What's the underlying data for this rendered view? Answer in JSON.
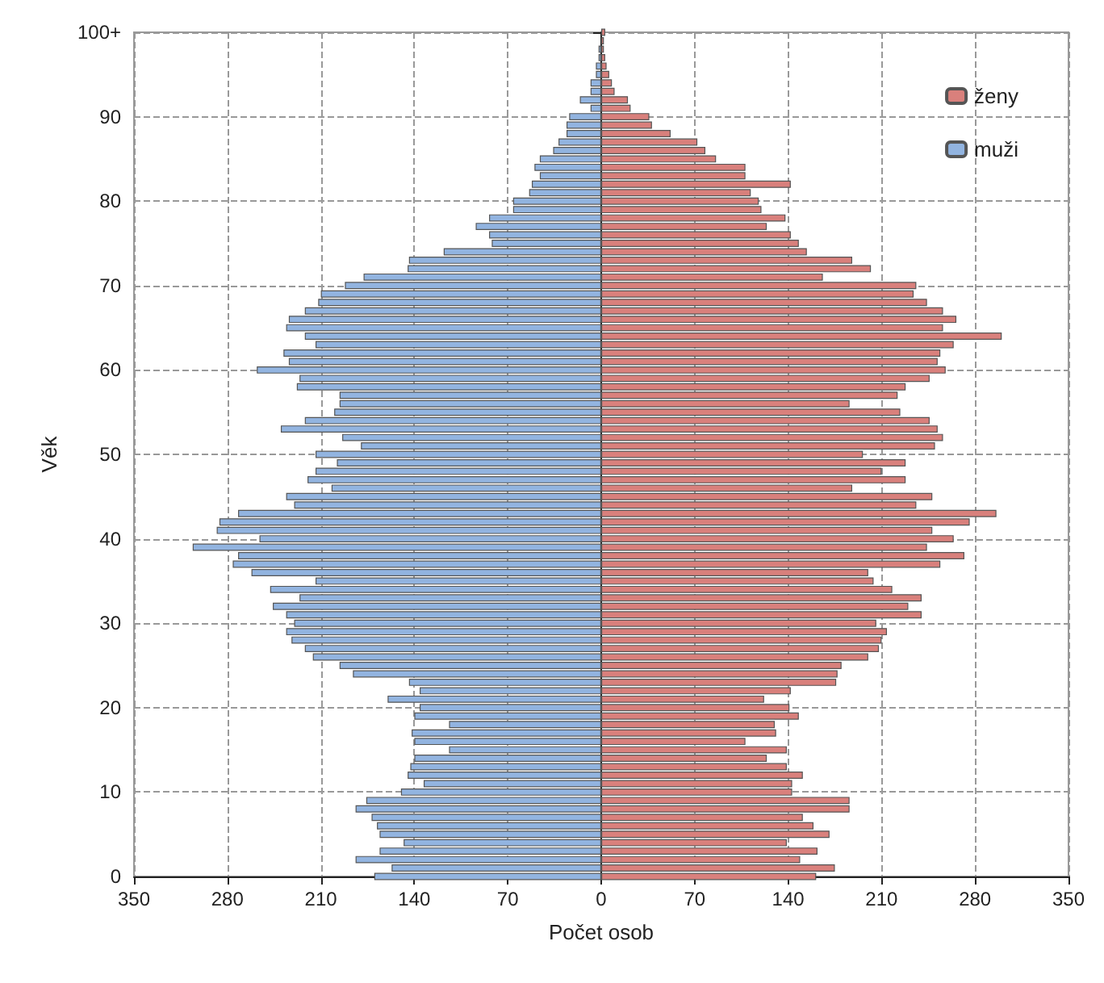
{
  "chart_data": {
    "type": "bar",
    "orientation": "horizontal",
    "stacked": true,
    "xlabel": "Počet osob",
    "ylabel": "Věk",
    "categories": [
      "100+",
      null,
      null,
      null,
      null,
      null,
      null,
      null,
      null,
      null,
      "90",
      null,
      null,
      null,
      null,
      null,
      null,
      null,
      null,
      null,
      "80",
      null,
      null,
      null,
      null,
      null,
      null,
      null,
      null,
      null,
      "70",
      null,
      null,
      null,
      null,
      null,
      null,
      null,
      null,
      null,
      "60",
      null,
      null,
      null,
      null,
      null,
      null,
      null,
      null,
      null,
      "50",
      null,
      null,
      null,
      null,
      null,
      null,
      null,
      null,
      null,
      "40",
      null,
      null,
      null,
      null,
      null,
      null,
      null,
      null,
      null,
      "30",
      null,
      null,
      null,
      null,
      null,
      null,
      null,
      null,
      null,
      "20",
      null,
      null,
      null,
      null,
      null,
      null,
      null,
      null,
      null,
      "10",
      null,
      null,
      null,
      null,
      null,
      null,
      null,
      null,
      null,
      "0"
    ],
    "series": [
      {
        "name": "ženy",
        "color": "#d9807c",
        "values": [
          3,
          2,
          2,
          3,
          4,
          6,
          8,
          10,
          20,
          22,
          36,
          38,
          52,
          72,
          78,
          86,
          108,
          108,
          142,
          112,
          118,
          120,
          138,
          124,
          142,
          148,
          154,
          188,
          202,
          166,
          236,
          234,
          244,
          256,
          266,
          256,
          300,
          264,
          254,
          252,
          258,
          246,
          228,
          222,
          186,
          224,
          246,
          252,
          256,
          250,
          196,
          228,
          210,
          228,
          188,
          248,
          236,
          296,
          276,
          248,
          264,
          244,
          272,
          254,
          200,
          204,
          218,
          240,
          230,
          240,
          206,
          214,
          210,
          208,
          200,
          180,
          177,
          176,
          142,
          122,
          141,
          148,
          130,
          131,
          108,
          139,
          124,
          139,
          151,
          143,
          143,
          186,
          186,
          151,
          159,
          171,
          139,
          162,
          149,
          175,
          161
        ]
      },
      {
        "name": "muži",
        "color": "#92b4e0",
        "values": [
          null,
          null,
          -2,
          -2,
          -4,
          -4,
          -8,
          -8,
          -16,
          -8,
          -24,
          -26,
          -26,
          -32,
          -36,
          -46,
          -50,
          -46,
          -52,
          -54,
          -66,
          -66,
          -84,
          -94,
          -84,
          -82,
          -118,
          -144,
          -145,
          -178,
          -192,
          -210,
          -212,
          -222,
          -234,
          -236,
          -222,
          -214,
          -238,
          -234,
          -258,
          -226,
          -228,
          -196,
          -196,
          -200,
          -222,
          -240,
          -194,
          -180,
          -214,
          -198,
          -214,
          -220,
          -202,
          -236,
          -230,
          -272,
          -286,
          -288,
          -256,
          -306,
          -272,
          -276,
          -262,
          -214,
          -248,
          -226,
          -246,
          -236,
          -230,
          -236,
          -232,
          -222,
          -216,
          -196,
          -186,
          -144,
          -136,
          -160,
          -136,
          -140,
          -114,
          -142,
          -140,
          -114,
          -140,
          -143,
          -145,
          -133,
          -150,
          -176,
          -184,
          -172,
          -168,
          -166,
          -148,
          -166,
          -184,
          -157,
          -170
        ]
      }
    ],
    "xlim": [
      -350,
      350
    ],
    "xticks": [
      {
        "value": -350,
        "label": "350"
      },
      {
        "value": -280,
        "label": "280"
      },
      {
        "value": -210,
        "label": "210"
      },
      {
        "value": -140,
        "label": "140"
      },
      {
        "value": -70,
        "label": "70"
      },
      0,
      70,
      140,
      210,
      280,
      350
    ],
    "grid": true,
    "legend": "top right"
  }
}
